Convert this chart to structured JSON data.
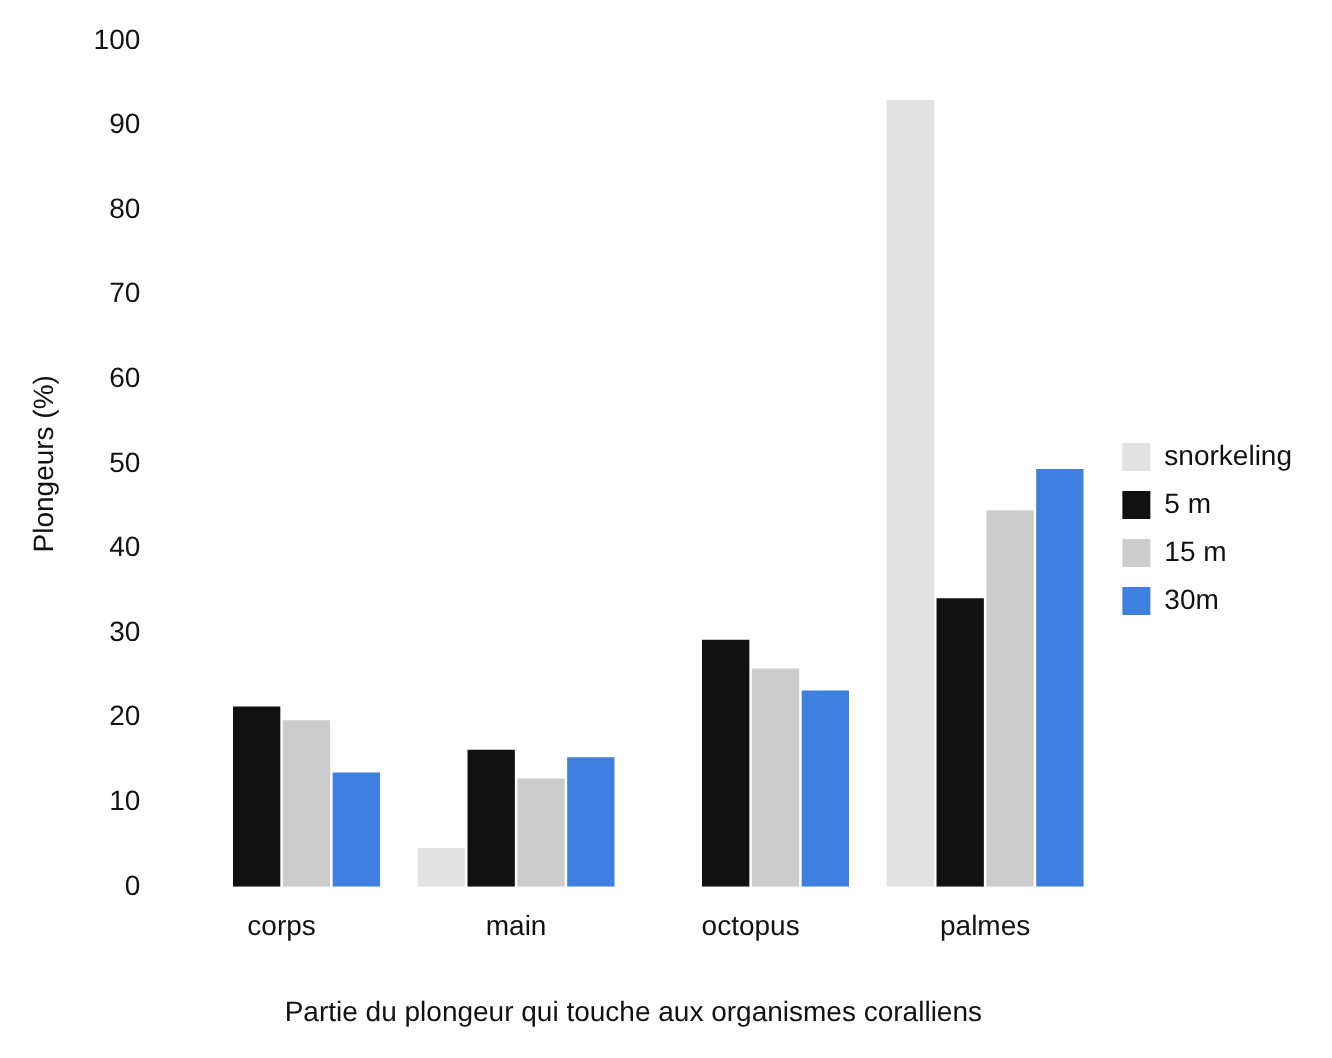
{
  "chart_data": {
    "type": "bar",
    "xlabel": "Partie du plongeur qui touche aux organismes coralliens",
    "ylabel": "Plongeurs (%)",
    "categories": [
      "corps",
      "main",
      "octopus",
      "palmes"
    ],
    "series": [
      {
        "name": "snorkeling",
        "color": "#e2e2e2",
        "values": [
          null,
          4.6,
          null,
          93
        ]
      },
      {
        "name": "5 m",
        "color": "#111111",
        "values": [
          21.3,
          16.2,
          29.2,
          34.1
        ]
      },
      {
        "name": "15 m",
        "color": "#cccccc",
        "values": [
          19.7,
          12.8,
          25.8,
          44.5
        ]
      },
      {
        "name": "30m",
        "color": "#3f7fe0",
        "values": [
          13.5,
          15.3,
          23.2,
          49.4
        ]
      }
    ],
    "ylim": [
      0,
      100
    ],
    "yticks": [
      0,
      10,
      20,
      30,
      40,
      50,
      60,
      70,
      80,
      90,
      100
    ],
    "grid": false,
    "legend": "right"
  }
}
